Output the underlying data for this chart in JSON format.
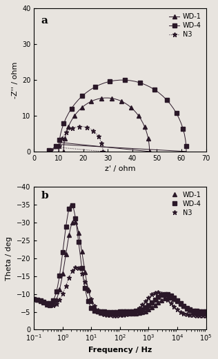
{
  "panel_a_label": "a",
  "panel_b_label": "b",
  "nyquist_xlabel": "z' / ohm",
  "nyquist_ylabel": "-Z'' / ohm",
  "nyquist_xlim": [
    0,
    70
  ],
  "nyquist_ylim": [
    0,
    40
  ],
  "nyquist_xticks": [
    0,
    10,
    20,
    30,
    40,
    50,
    60,
    70
  ],
  "nyquist_yticks": [
    0,
    10,
    20,
    30,
    40
  ],
  "bode_xlabel": "Frequency / Hz",
  "bode_ylabel": "Theta / deg",
  "bode_xlim": [
    0.1,
    100000
  ],
  "bode_ylim": [
    -40,
    0
  ],
  "bode_yticks": [
    -40,
    -35,
    -30,
    -25,
    -20,
    -15,
    -10,
    -5,
    0
  ],
  "bg_color": "#e8e4df",
  "line_color": "#2a1828",
  "legend_labels": [
    "WD-1",
    "WD-4",
    "N3"
  ],
  "marker_wd1": "^",
  "marker_wd4": "s",
  "marker_n3": "*"
}
